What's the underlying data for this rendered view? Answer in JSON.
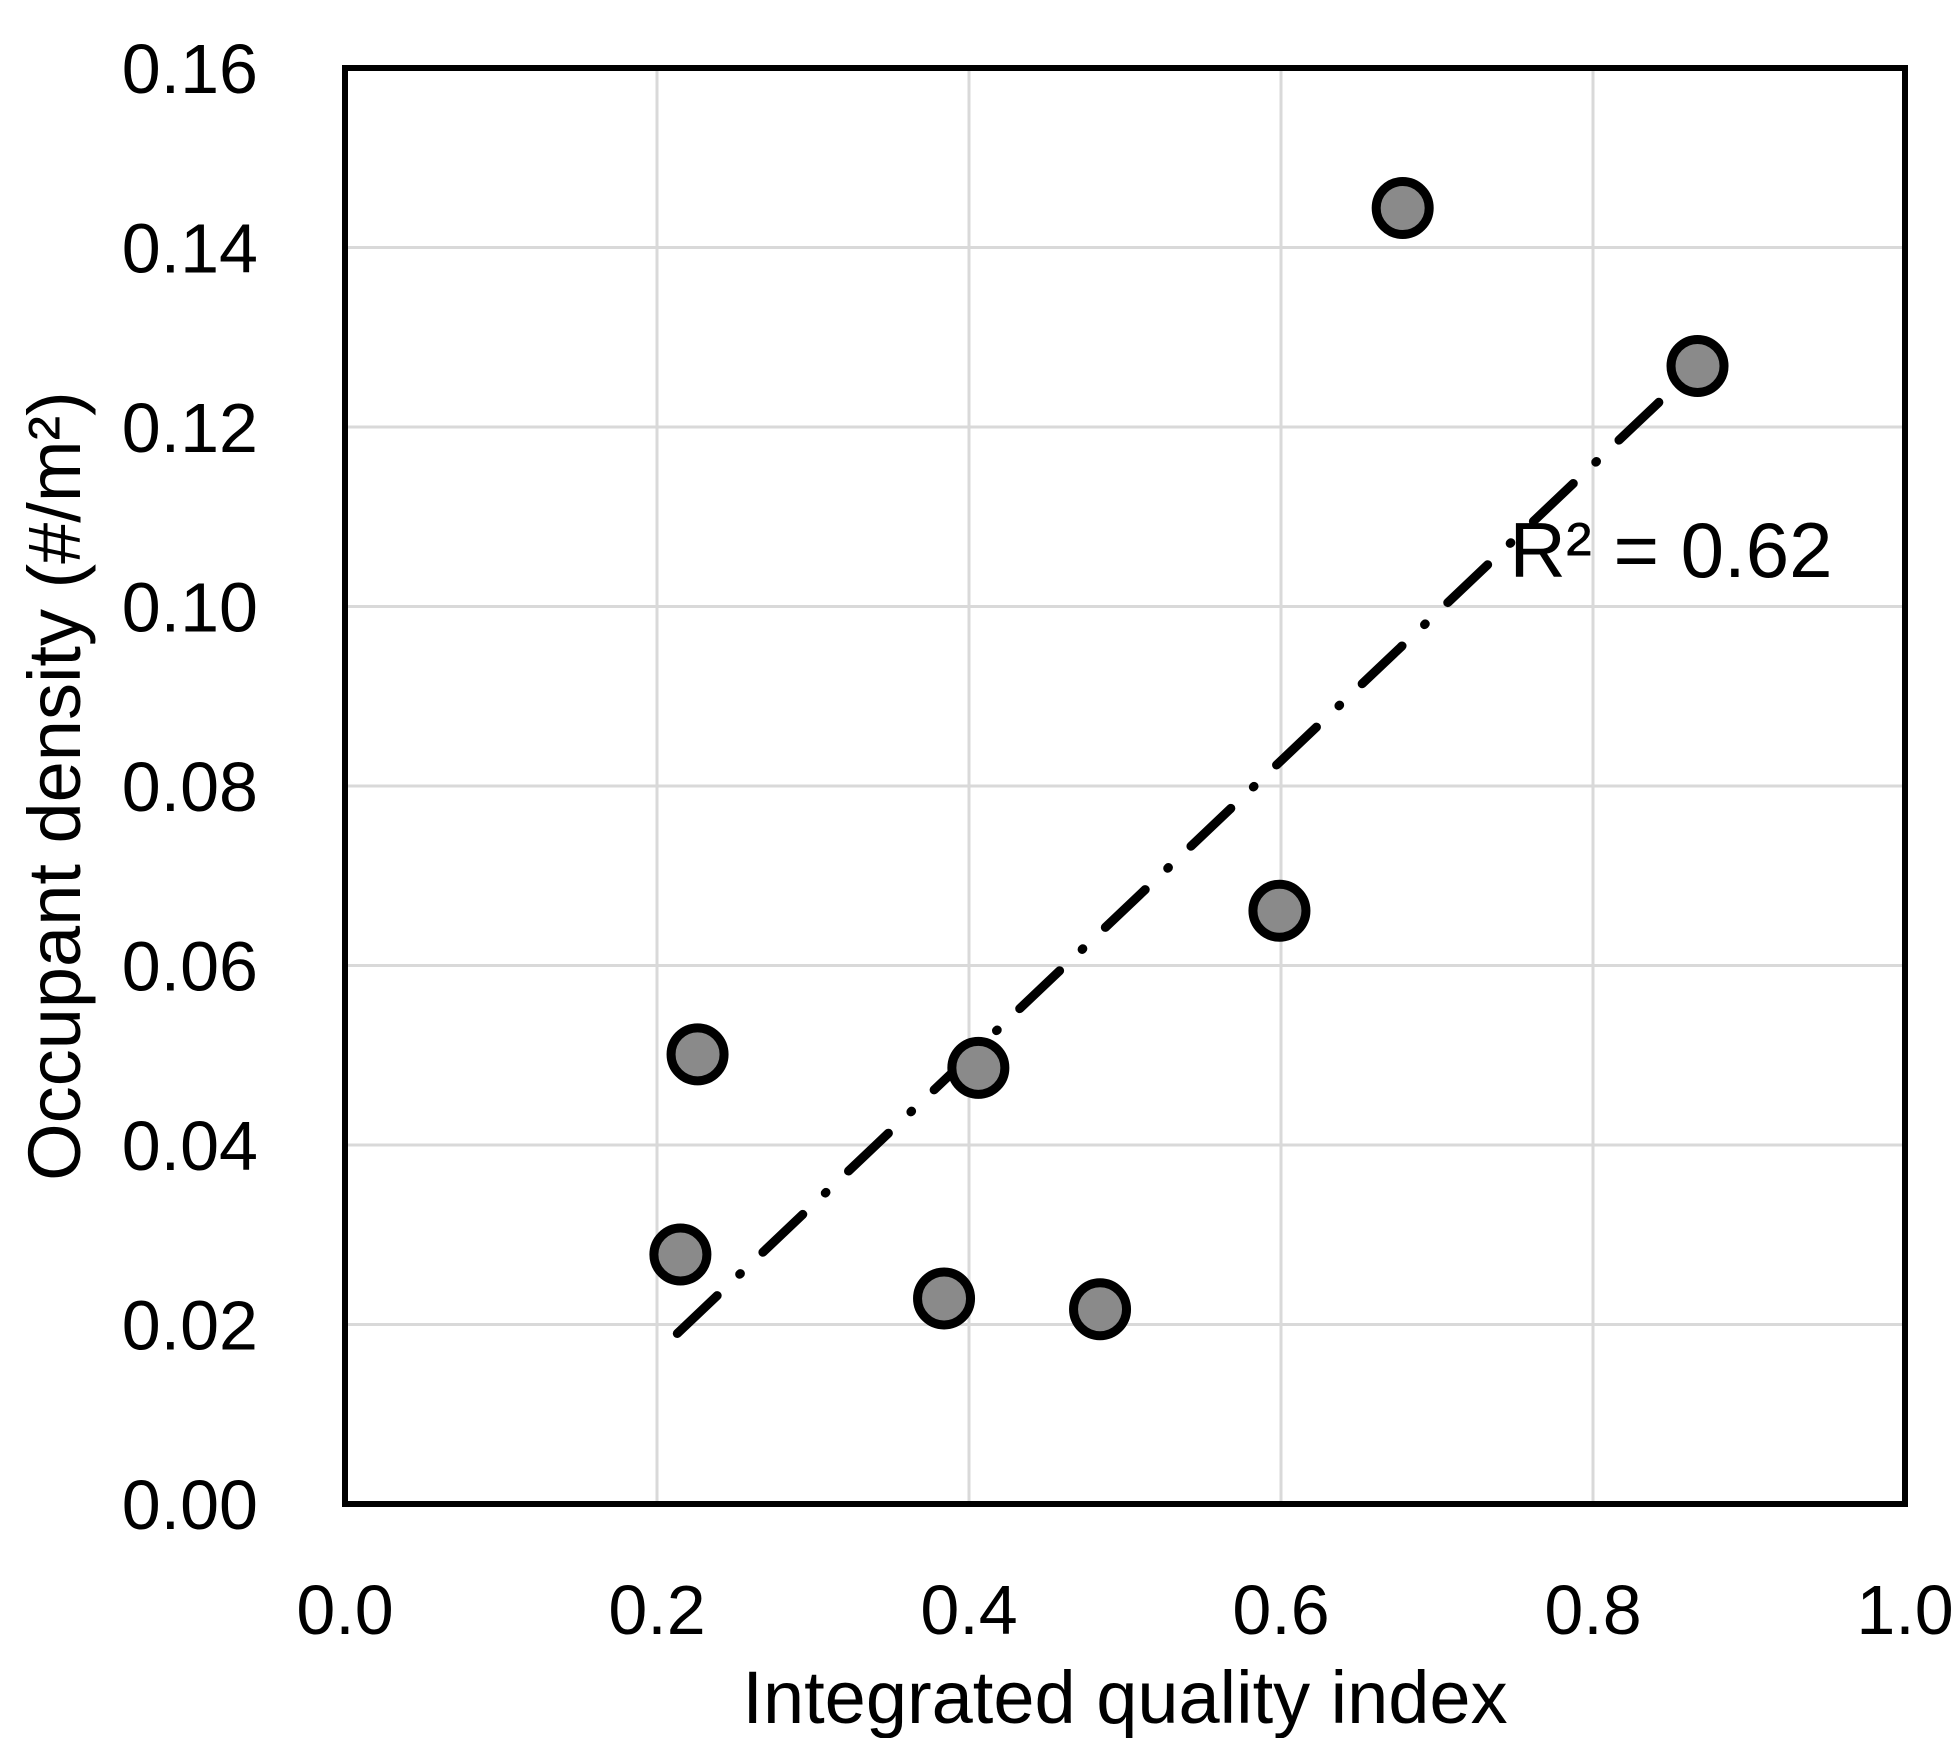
{
  "chart_data": {
    "type": "scatter",
    "title": "",
    "xlabel": "Integrated quality index",
    "ylabel": "Occupant density (#/m²)",
    "xlim": [
      0.0,
      1.0
    ],
    "ylim": [
      0.0,
      0.16
    ],
    "grid": true,
    "legend": "none",
    "x_tick_values": [
      0.0,
      0.2,
      0.4,
      0.6,
      0.8,
      1.0
    ],
    "x_tick_labels": [
      "0.0",
      "0.2",
      "0.4",
      "0.6",
      "0.8",
      "1.0"
    ],
    "y_tick_values": [
      0.0,
      0.02,
      0.04,
      0.06,
      0.08,
      0.1,
      0.12,
      0.14,
      0.16
    ],
    "y_tick_labels": [
      "0.00",
      "0.02",
      "0.04",
      "0.06",
      "0.08",
      "0.10",
      "0.12",
      "0.14",
      "0.16"
    ],
    "points": [
      {
        "x": 0.678,
        "y": 0.1444
      },
      {
        "x": 0.867,
        "y": 0.1268
      },
      {
        "x": 0.599,
        "y": 0.0661
      },
      {
        "x": 0.226,
        "y": 0.0501
      },
      {
        "x": 0.406,
        "y": 0.0486
      },
      {
        "x": 0.215,
        "y": 0.0278
      },
      {
        "x": 0.384,
        "y": 0.0229
      },
      {
        "x": 0.484,
        "y": 0.0217
      }
    ],
    "trendline": {
      "style": "dash-dot",
      "x_start": 0.213,
      "y_start": 0.019,
      "x_end": 0.868,
      "y_end": 0.127
    },
    "annotation": {
      "text": "R² = 0.62",
      "x": 0.85,
      "y": 0.1033
    },
    "marker": {
      "fill": "#8A8A8A",
      "stroke": "#000000"
    },
    "colors": {
      "gridline": "#D9D9D9",
      "axis_border": "#000000",
      "trendline": "#000000",
      "text": "#000000",
      "background": "#FFFFFF"
    }
  }
}
